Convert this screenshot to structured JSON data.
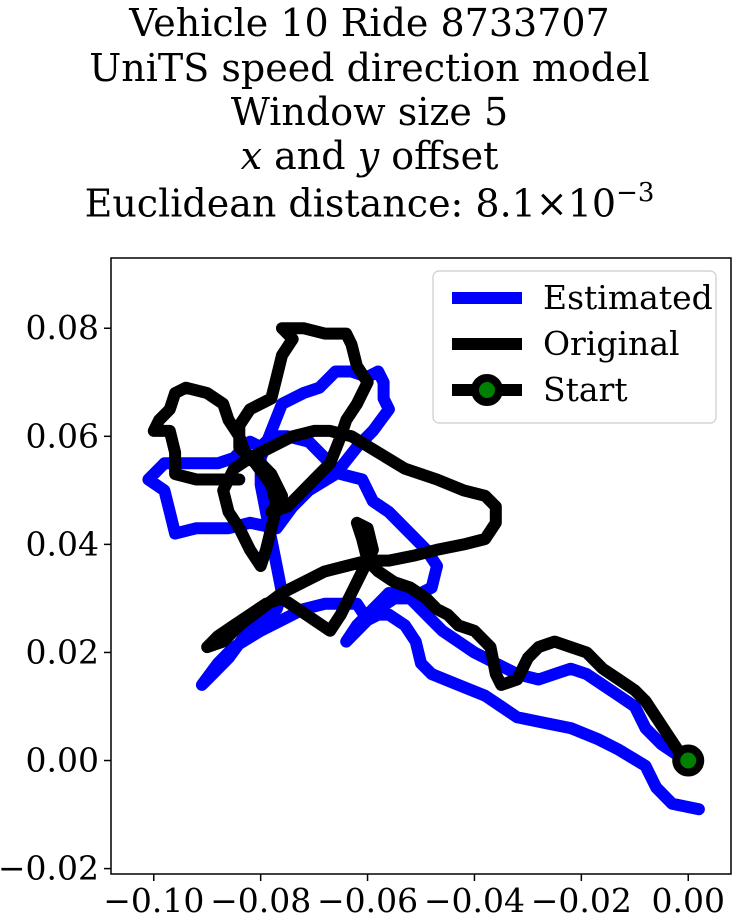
{
  "title_lines": {
    "line1": "Vehicle 10 Ride 8733707",
    "line2": "UniTS speed direction model",
    "line3": "Window size 5",
    "line4_x": "x",
    "line4_and": " and ",
    "line4_y": "y",
    "line4_rest": " offset",
    "line5_prefix": "Euclidean distance: 8.1",
    "line5_times": "×",
    "line5_base": "10",
    "line5_exp": "−3"
  },
  "chart_data": {
    "type": "line",
    "xlim": [
      -0.108,
      0.008
    ],
    "ylim": [
      -0.021,
      0.093
    ],
    "x_ticks": [
      -0.1,
      -0.08,
      -0.06,
      -0.04,
      -0.02,
      0.0
    ],
    "x_tick_labels": [
      "−0.10",
      "−0.08",
      "−0.06",
      "−0.04",
      "−0.02",
      "0.00"
    ],
    "y_ticks": [
      -0.02,
      0.0,
      0.02,
      0.04,
      0.06,
      0.08
    ],
    "y_tick_labels": [
      "−0.02",
      "0.00",
      "0.02",
      "0.04",
      "0.06",
      "0.08"
    ],
    "grid": false,
    "legend_position": "top-right",
    "series": [
      {
        "name": "Estimated",
        "color": "#0000ff",
        "points": [
          [
            0.002,
            -0.009
          ],
          [
            -0.003,
            -0.008
          ],
          [
            -0.006,
            -0.005
          ],
          [
            -0.008,
            -0.001
          ],
          [
            -0.013,
            0.002
          ],
          [
            -0.017,
            0.004
          ],
          [
            -0.022,
            0.006
          ],
          [
            -0.027,
            0.007
          ],
          [
            -0.032,
            0.008
          ],
          [
            -0.035,
            0.01
          ],
          [
            -0.038,
            0.012
          ],
          [
            -0.043,
            0.014
          ],
          [
            -0.048,
            0.016
          ],
          [
            -0.05,
            0.018
          ],
          [
            -0.051,
            0.022
          ],
          [
            -0.053,
            0.025
          ],
          [
            -0.056,
            0.027
          ],
          [
            -0.058,
            0.027
          ],
          [
            -0.06,
            0.026
          ],
          [
            -0.062,
            0.029
          ],
          [
            -0.068,
            0.029
          ],
          [
            -0.072,
            0.028
          ],
          [
            -0.076,
            0.026
          ],
          [
            -0.08,
            0.024
          ],
          [
            -0.085,
            0.021
          ],
          [
            -0.088,
            0.018
          ],
          [
            -0.091,
            0.014
          ],
          [
            -0.089,
            0.016
          ],
          [
            -0.086,
            0.019
          ],
          [
            -0.083,
            0.023
          ],
          [
            -0.08,
            0.026
          ],
          [
            -0.077,
            0.028
          ],
          [
            -0.076,
            0.031
          ],
          [
            -0.077,
            0.036
          ],
          [
            -0.078,
            0.041
          ],
          [
            -0.079,
            0.046
          ],
          [
            -0.08,
            0.051
          ],
          [
            -0.08,
            0.056
          ],
          [
            -0.078,
            0.061
          ],
          [
            -0.076,
            0.066
          ],
          [
            -0.072,
            0.068
          ],
          [
            -0.069,
            0.069
          ],
          [
            -0.066,
            0.072
          ],
          [
            -0.063,
            0.072
          ],
          [
            -0.06,
            0.071
          ],
          [
            -0.058,
            0.072
          ],
          [
            -0.057,
            0.07
          ],
          [
            -0.057,
            0.067
          ],
          [
            -0.056,
            0.065
          ],
          [
            -0.059,
            0.061
          ],
          [
            -0.062,
            0.058
          ],
          [
            -0.066,
            0.053
          ],
          [
            -0.071,
            0.05
          ],
          [
            -0.074,
            0.047
          ],
          [
            -0.077,
            0.043
          ],
          [
            -0.082,
            0.044
          ],
          [
            -0.086,
            0.043
          ],
          [
            -0.092,
            0.043
          ],
          [
            -0.096,
            0.042
          ],
          [
            -0.097,
            0.046
          ],
          [
            -0.098,
            0.05
          ],
          [
            -0.101,
            0.052
          ],
          [
            -0.098,
            0.055
          ],
          [
            -0.093,
            0.055
          ],
          [
            -0.088,
            0.055
          ],
          [
            -0.085,
            0.056
          ],
          [
            -0.082,
            0.059
          ],
          [
            -0.08,
            0.058
          ],
          [
            -0.078,
            0.06
          ],
          [
            -0.075,
            0.06
          ],
          [
            -0.071,
            0.059
          ],
          [
            -0.068,
            0.056
          ],
          [
            -0.065,
            0.053
          ],
          [
            -0.061,
            0.052
          ],
          [
            -0.059,
            0.048
          ],
          [
            -0.056,
            0.046
          ],
          [
            -0.052,
            0.042
          ],
          [
            -0.049,
            0.039
          ],
          [
            -0.047,
            0.036
          ],
          [
            -0.048,
            0.032
          ],
          [
            -0.052,
            0.03
          ],
          [
            -0.055,
            0.03
          ],
          [
            -0.058,
            0.028
          ],
          [
            -0.061,
            0.025
          ],
          [
            -0.064,
            0.022
          ],
          [
            -0.062,
            0.025
          ],
          [
            -0.059,
            0.028
          ],
          [
            -0.056,
            0.031
          ],
          [
            -0.052,
            0.03
          ],
          [
            -0.049,
            0.027
          ],
          [
            -0.046,
            0.024
          ],
          [
            -0.043,
            0.022
          ],
          [
            -0.04,
            0.02
          ],
          [
            -0.036,
            0.018
          ],
          [
            -0.032,
            0.016
          ],
          [
            -0.028,
            0.015
          ],
          [
            -0.025,
            0.016
          ],
          [
            -0.022,
            0.017
          ],
          [
            -0.019,
            0.016
          ],
          [
            -0.016,
            0.014
          ],
          [
            -0.013,
            0.012
          ],
          [
            -0.01,
            0.01
          ],
          [
            -0.008,
            0.006
          ],
          [
            -0.005,
            0.003
          ],
          [
            -0.002,
            0.001
          ],
          [
            0.0,
            0.0
          ]
        ]
      },
      {
        "name": "Original",
        "color": "#000000",
        "points": [
          [
            0.0,
            0.0
          ],
          [
            -0.002,
            0.002
          ],
          [
            -0.004,
            0.005
          ],
          [
            -0.006,
            0.008
          ],
          [
            -0.008,
            0.011
          ],
          [
            -0.01,
            0.013
          ],
          [
            -0.013,
            0.015
          ],
          [
            -0.016,
            0.017
          ],
          [
            -0.019,
            0.02
          ],
          [
            -0.022,
            0.021
          ],
          [
            -0.025,
            0.022
          ],
          [
            -0.028,
            0.021
          ],
          [
            -0.03,
            0.019
          ],
          [
            -0.032,
            0.015
          ],
          [
            -0.035,
            0.014
          ],
          [
            -0.036,
            0.016
          ],
          [
            -0.037,
            0.021
          ],
          [
            -0.04,
            0.024
          ],
          [
            -0.043,
            0.025
          ],
          [
            -0.045,
            0.027
          ],
          [
            -0.047,
            0.028
          ],
          [
            -0.049,
            0.03
          ],
          [
            -0.052,
            0.032
          ],
          [
            -0.055,
            0.033
          ],
          [
            -0.058,
            0.035
          ],
          [
            -0.06,
            0.037
          ],
          [
            -0.061,
            0.041
          ],
          [
            -0.062,
            0.044
          ],
          [
            -0.06,
            0.043
          ],
          [
            -0.059,
            0.039
          ],
          [
            -0.061,
            0.035
          ],
          [
            -0.063,
            0.031
          ],
          [
            -0.065,
            0.027
          ],
          [
            -0.067,
            0.024
          ],
          [
            -0.07,
            0.026
          ],
          [
            -0.073,
            0.028
          ],
          [
            -0.076,
            0.03
          ],
          [
            -0.079,
            0.029
          ],
          [
            -0.082,
            0.027
          ],
          [
            -0.085,
            0.025
          ],
          [
            -0.088,
            0.023
          ],
          [
            -0.09,
            0.021
          ],
          [
            -0.087,
            0.022
          ],
          [
            -0.084,
            0.025
          ],
          [
            -0.08,
            0.028
          ],
          [
            -0.076,
            0.031
          ],
          [
            -0.072,
            0.033
          ],
          [
            -0.068,
            0.035
          ],
          [
            -0.064,
            0.036
          ],
          [
            -0.06,
            0.037
          ],
          [
            -0.056,
            0.037
          ],
          [
            -0.051,
            0.038
          ],
          [
            -0.047,
            0.039
          ],
          [
            -0.042,
            0.04
          ],
          [
            -0.038,
            0.041
          ],
          [
            -0.036,
            0.044
          ],
          [
            -0.036,
            0.047
          ],
          [
            -0.038,
            0.049
          ],
          [
            -0.042,
            0.05
          ],
          [
            -0.047,
            0.052
          ],
          [
            -0.053,
            0.054
          ],
          [
            -0.058,
            0.057
          ],
          [
            -0.063,
            0.06
          ],
          [
            -0.067,
            0.061
          ],
          [
            -0.07,
            0.061
          ],
          [
            -0.074,
            0.06
          ],
          [
            -0.078,
            0.058
          ],
          [
            -0.082,
            0.056
          ],
          [
            -0.085,
            0.054
          ],
          [
            -0.087,
            0.05
          ],
          [
            -0.086,
            0.046
          ],
          [
            -0.084,
            0.043
          ],
          [
            -0.082,
            0.039
          ],
          [
            -0.08,
            0.036
          ],
          [
            -0.079,
            0.039
          ],
          [
            -0.078,
            0.043
          ],
          [
            -0.077,
            0.047
          ],
          [
            -0.078,
            0.051
          ],
          [
            -0.081,
            0.055
          ],
          [
            -0.084,
            0.058
          ],
          [
            -0.084,
            0.062
          ],
          [
            -0.082,
            0.065
          ],
          [
            -0.078,
            0.067
          ],
          [
            -0.077,
            0.071
          ],
          [
            -0.076,
            0.075
          ],
          [
            -0.074,
            0.078
          ],
          [
            -0.076,
            0.08
          ],
          [
            -0.072,
            0.08
          ],
          [
            -0.068,
            0.079
          ],
          [
            -0.064,
            0.079
          ],
          [
            -0.063,
            0.077
          ],
          [
            -0.062,
            0.073
          ],
          [
            -0.06,
            0.07
          ],
          [
            -0.062,
            0.066
          ],
          [
            -0.064,
            0.063
          ],
          [
            -0.065,
            0.06
          ],
          [
            -0.067,
            0.055
          ],
          [
            -0.07,
            0.052
          ],
          [
            -0.073,
            0.049
          ],
          [
            -0.075,
            0.047
          ],
          [
            -0.078,
            0.046
          ],
          [
            -0.076,
            0.049
          ],
          [
            -0.078,
            0.053
          ],
          [
            -0.08,
            0.055
          ],
          [
            -0.083,
            0.057
          ],
          [
            -0.084,
            0.06
          ],
          [
            -0.086,
            0.063
          ],
          [
            -0.087,
            0.066
          ],
          [
            -0.09,
            0.068
          ],
          [
            -0.094,
            0.069
          ],
          [
            -0.096,
            0.068
          ],
          [
            -0.097,
            0.065
          ],
          [
            -0.099,
            0.063
          ],
          [
            -0.1,
            0.061
          ],
          [
            -0.097,
            0.061
          ],
          [
            -0.096,
            0.057
          ],
          [
            -0.096,
            0.053
          ],
          [
            -0.092,
            0.052
          ],
          [
            -0.088,
            0.052
          ],
          [
            -0.084,
            0.052
          ]
        ]
      }
    ],
    "start": {
      "name": "Start",
      "point": [
        0.0,
        0.0
      ],
      "color": "#008000",
      "edge_color": "#000000"
    }
  }
}
